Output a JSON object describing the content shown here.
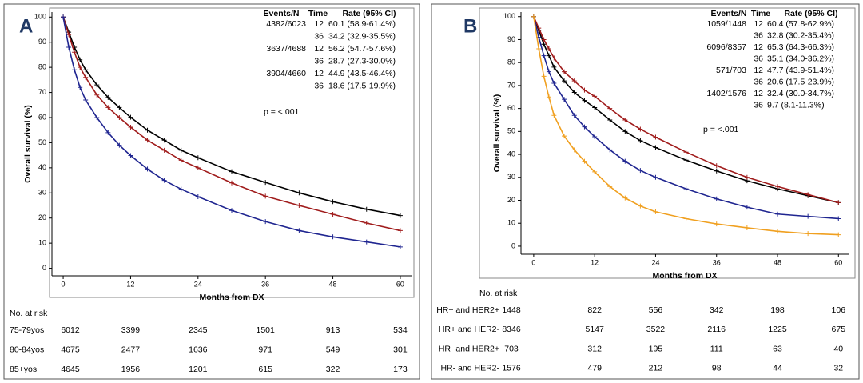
{
  "chart_data": [
    {
      "panel_label": "A",
      "type": "line",
      "xlabel": "Months from DX",
      "ylabel": "Overall survival (%)",
      "x": [
        0,
        1,
        2,
        3,
        4,
        6,
        8,
        10,
        12,
        15,
        18,
        21,
        24,
        30,
        36,
        42,
        48,
        54,
        60
      ],
      "xlim": [
        -2,
        62
      ],
      "ylim": [
        -3,
        102
      ],
      "xticks": [
        0,
        12,
        24,
        36,
        48,
        60
      ],
      "yticks": [
        0,
        10,
        20,
        30,
        40,
        50,
        60,
        70,
        80,
        90,
        100
      ],
      "estimates_header": [
        "Events/N",
        "Time",
        "Rate (95% CI)"
      ],
      "p_value": "p = <.001",
      "at_risk_title": "No. at risk",
      "series": [
        {
          "name": "75-79yos",
          "color": "#000000",
          "events": "4382/6023",
          "rates": [
            {
              "time": 12,
              "rate": "60.1 (58.9-61.4%)"
            },
            {
              "time": 36,
              "rate": "34.2 (32.9-35.5%)"
            }
          ],
          "values": [
            100,
            94,
            88,
            83,
            79,
            73,
            68,
            64,
            60.1,
            55,
            51,
            47,
            44,
            38.5,
            34.2,
            30,
            26.5,
            23.5,
            21
          ],
          "at_risk": [
            6012,
            3399,
            2345,
            1501,
            913,
            534
          ]
        },
        {
          "name": "80-84yos",
          "color": "#a01c1c",
          "events": "3637/4688",
          "rates": [
            {
              "time": 12,
              "rate": "56.2 (54.7-57.6%)"
            },
            {
              "time": 36,
              "rate": "28.7 (27.3-30.0%)"
            }
          ],
          "values": [
            100,
            93,
            86,
            80,
            76,
            69,
            64,
            60,
            56.2,
            51,
            47,
            43,
            40,
            34,
            28.7,
            25,
            21.5,
            18,
            15
          ],
          "at_risk": [
            4675,
            2477,
            1636,
            971,
            549,
            301
          ]
        },
        {
          "name": "85+yos",
          "color": "#1f2590",
          "events": "3904/4660",
          "rates": [
            {
              "time": 12,
              "rate": "44.9 (43.5-46.4%)"
            },
            {
              "time": 36,
              "rate": "18.6 (17.5-19.9%)"
            }
          ],
          "values": [
            100,
            88,
            79,
            72,
            67,
            60,
            54,
            49,
            44.9,
            39.5,
            35,
            31.5,
            28.5,
            23,
            18.6,
            15,
            12.5,
            10.5,
            8.5
          ],
          "at_risk": [
            4645,
            1956,
            1201,
            615,
            322,
            173
          ]
        }
      ]
    },
    {
      "panel_label": "B",
      "type": "line",
      "xlabel": "Months from DX",
      "ylabel": "Overall survival (%)",
      "x": [
        0,
        1,
        2,
        3,
        4,
        6,
        8,
        10,
        12,
        15,
        18,
        21,
        24,
        30,
        36,
        42,
        48,
        54,
        60
      ],
      "xlim": [
        -2.5,
        62
      ],
      "ylim": [
        -3.5,
        102
      ],
      "xticks": [
        0,
        12,
        24,
        36,
        48,
        60
      ],
      "yticks": [
        0,
        10,
        20,
        30,
        40,
        50,
        60,
        70,
        80,
        90,
        100
      ],
      "estimates_header": [
        "Events/N",
        "Time",
        "Rate (95% CI)"
      ],
      "p_value": "p = <.001",
      "at_risk_title": "No. at risk",
      "series": [
        {
          "name": "HR+ and HER2+",
          "color": "#000000",
          "events": "1059/1448",
          "rates": [
            {
              "time": 12,
              "rate": "60.4 (57.8-62.9%)"
            },
            {
              "time": 36,
              "rate": "32.8 (30.2-35.4%)"
            }
          ],
          "values": [
            100,
            94,
            88,
            83,
            78,
            72,
            67,
            63.5,
            60.4,
            55,
            50,
            46,
            43,
            37.5,
            32.8,
            28.5,
            25,
            22,
            19
          ],
          "at_risk": [
            1448,
            822,
            556,
            342,
            198,
            106
          ]
        },
        {
          "name": "HR+ and HER2-",
          "color": "#a01c1c",
          "events": "6096/8357",
          "rates": [
            {
              "time": 12,
              "rate": "65.3 (64.3-66.3%)"
            },
            {
              "time": 36,
              "rate": "35.1 (34.0-36.2%)"
            }
          ],
          "values": [
            100,
            95,
            90,
            86,
            82,
            76,
            72,
            68,
            65.3,
            60,
            55,
            51,
            47.5,
            41,
            35.1,
            30,
            26,
            22.5,
            19
          ],
          "at_risk": [
            8346,
            5147,
            3522,
            2116,
            1225,
            675
          ]
        },
        {
          "name": "HR- and HER2+",
          "color": "#1f2590",
          "events": "571/703",
          "rates": [
            {
              "time": 12,
              "rate": "47.7 (43.9-51.4%)"
            },
            {
              "time": 36,
              "rate": "20.6 (17.5-23.9%)"
            }
          ],
          "values": [
            100,
            91,
            83,
            76,
            71,
            64,
            57,
            52,
            47.7,
            42,
            37,
            33,
            30,
            25,
            20.6,
            17,
            14,
            13,
            12
          ],
          "at_risk": [
            703,
            312,
            195,
            111,
            63,
            40
          ]
        },
        {
          "name": "HR- and HER2-",
          "color": "#f0a020",
          "events": "1402/1576",
          "rates": [
            {
              "time": 12,
              "rate": "32.4 (30.0-34.7%)"
            },
            {
              "time": 36,
              "rate": "9.7 (8.1-11.3%)"
            }
          ],
          "values": [
            100,
            86,
            74,
            65,
            57,
            48,
            42,
            37,
            32.4,
            26,
            21,
            17.5,
            15,
            12,
            9.7,
            8,
            6.5,
            5.5,
            5
          ],
          "at_risk": [
            1576,
            479,
            212,
            98,
            44,
            32
          ]
        }
      ]
    }
  ]
}
